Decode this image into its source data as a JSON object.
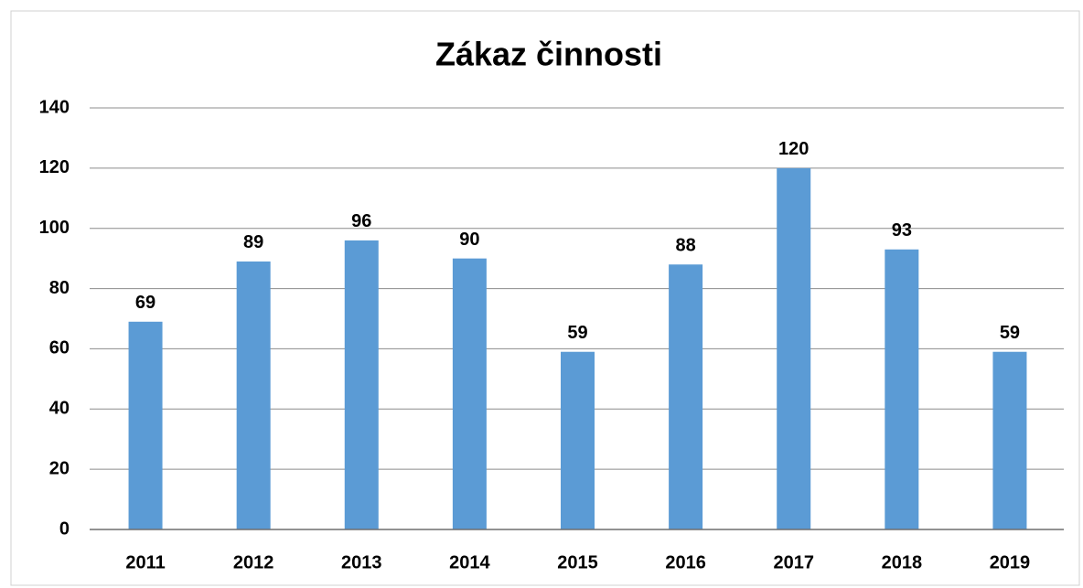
{
  "chart_data": {
    "type": "bar",
    "title": "Zákaz činnosti",
    "categories": [
      "2011",
      "2012",
      "2013",
      "2014",
      "2015",
      "2016",
      "2017",
      "2018",
      "2019"
    ],
    "values": [
      69,
      89,
      96,
      90,
      59,
      88,
      120,
      93,
      59
    ],
    "color": "#5b9bd5",
    "ylim": [
      0,
      140
    ],
    "yticks": [
      0,
      20,
      40,
      60,
      80,
      100,
      120,
      140
    ],
    "grid": true
  }
}
